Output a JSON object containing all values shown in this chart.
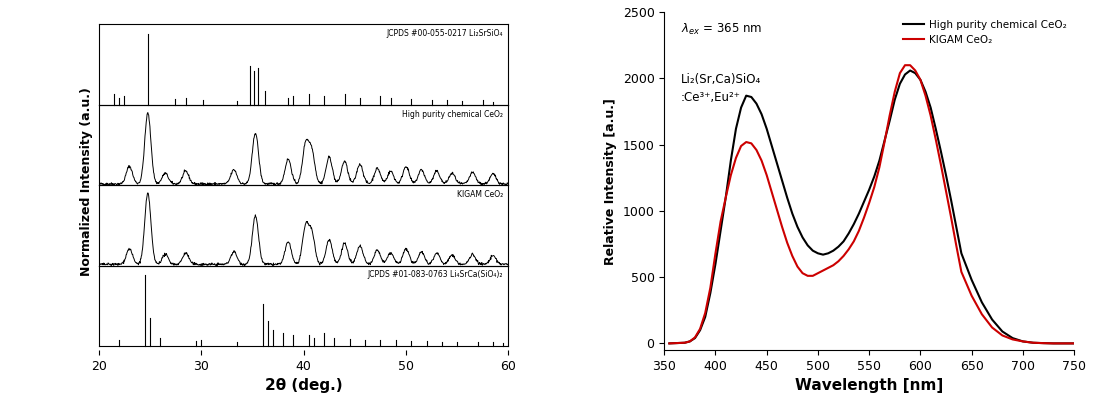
{
  "xrd": {
    "xlabel": "2θ (deg.)",
    "ylabel": "Normalized Intensity (a.u.)",
    "xlim": [
      20,
      60
    ],
    "labels": [
      "JCPDS #00-055-0217 Li₂SrSiO₄",
      "High purity chemical CeO₂",
      "KIGAM CeO₂",
      "JCPDS #01-083-0763 Li₄SrCa(SiO₄)₂"
    ],
    "panel1_peaks": [
      21.5,
      22.0,
      22.5,
      24.8,
      27.5,
      28.5,
      30.2,
      33.5,
      34.8,
      35.2,
      35.6,
      36.2,
      38.5,
      39.0,
      40.5,
      42.0,
      44.0,
      45.5,
      47.5,
      48.5,
      50.5,
      52.5,
      54.0,
      55.5,
      57.5,
      58.5
    ],
    "panel1_heights": [
      0.15,
      0.1,
      0.12,
      1.0,
      0.08,
      0.1,
      0.06,
      0.05,
      0.55,
      0.48,
      0.52,
      0.2,
      0.1,
      0.12,
      0.15,
      0.12,
      0.15,
      0.1,
      0.12,
      0.1,
      0.08,
      0.07,
      0.06,
      0.05,
      0.06,
      0.04
    ],
    "panel2_peaks": [
      23.0,
      24.8,
      26.5,
      28.5,
      33.2,
      35.3,
      38.5,
      40.2,
      40.8,
      42.5,
      44.0,
      45.5,
      47.2,
      48.5,
      50.0,
      51.5,
      53.0,
      54.5,
      56.5,
      58.5
    ],
    "panel2_heights": [
      0.25,
      1.0,
      0.15,
      0.18,
      0.2,
      0.72,
      0.35,
      0.55,
      0.45,
      0.38,
      0.32,
      0.28,
      0.22,
      0.18,
      0.25,
      0.2,
      0.18,
      0.15,
      0.16,
      0.14
    ],
    "panel3_peaks": [
      23.0,
      24.8,
      26.5,
      28.5,
      33.2,
      35.3,
      38.5,
      40.2,
      40.8,
      42.5,
      44.0,
      45.5,
      47.2,
      48.5,
      50.0,
      51.5,
      53.0,
      54.5,
      56.5,
      58.5
    ],
    "panel3_heights": [
      0.22,
      1.0,
      0.14,
      0.16,
      0.18,
      0.68,
      0.32,
      0.52,
      0.42,
      0.35,
      0.3,
      0.26,
      0.2,
      0.16,
      0.22,
      0.18,
      0.16,
      0.13,
      0.14,
      0.12
    ],
    "panel4_peaks": [
      22.0,
      24.5,
      25.0,
      26.0,
      29.5,
      30.0,
      33.5,
      36.0,
      36.5,
      37.0,
      38.0,
      39.0,
      40.5,
      41.0,
      42.0,
      43.0,
      44.5,
      46.0,
      47.5,
      49.0,
      50.5,
      52.0,
      53.5,
      55.0,
      57.0,
      58.5,
      59.5
    ],
    "panel4_heights": [
      0.08,
      1.0,
      0.4,
      0.12,
      0.07,
      0.08,
      0.06,
      0.6,
      0.35,
      0.22,
      0.18,
      0.15,
      0.15,
      0.12,
      0.18,
      0.12,
      0.1,
      0.08,
      0.09,
      0.08,
      0.07,
      0.07,
      0.06,
      0.06,
      0.05,
      0.05,
      0.04
    ]
  },
  "emission": {
    "xlabel": "Wavelength [nm]",
    "ylabel": "Relative Intensity [a.u.]",
    "xlim": [
      350,
      750
    ],
    "ylim": [
      -50,
      2500
    ],
    "yticks": [
      0,
      500,
      1000,
      1500,
      2000,
      2500
    ],
    "legend_labels": [
      "High purity chemical CeO₂",
      "KIGAM CeO₂"
    ],
    "black_curve_x": [
      355,
      370,
      375,
      380,
      385,
      390,
      395,
      400,
      405,
      410,
      415,
      420,
      425,
      430,
      435,
      440,
      445,
      450,
      455,
      460,
      465,
      470,
      475,
      480,
      485,
      490,
      495,
      500,
      505,
      510,
      515,
      520,
      525,
      530,
      535,
      540,
      545,
      550,
      555,
      560,
      565,
      570,
      575,
      580,
      585,
      590,
      595,
      600,
      605,
      610,
      615,
      620,
      625,
      630,
      635,
      640,
      650,
      660,
      670,
      680,
      690,
      700,
      710,
      720,
      730,
      740,
      750
    ],
    "black_curve_y": [
      0,
      5,
      15,
      40,
      100,
      200,
      380,
      600,
      850,
      1100,
      1380,
      1620,
      1780,
      1870,
      1860,
      1810,
      1730,
      1620,
      1490,
      1360,
      1230,
      1100,
      980,
      880,
      800,
      740,
      700,
      680,
      670,
      680,
      700,
      730,
      770,
      830,
      900,
      980,
      1070,
      1160,
      1260,
      1380,
      1530,
      1680,
      1840,
      1960,
      2030,
      2060,
      2040,
      1990,
      1900,
      1780,
      1620,
      1450,
      1270,
      1080,
      880,
      680,
      480,
      310,
      180,
      90,
      40,
      15,
      5,
      2,
      0,
      0,
      0
    ],
    "red_curve_x": [
      355,
      370,
      375,
      380,
      385,
      390,
      395,
      400,
      405,
      410,
      415,
      420,
      425,
      430,
      435,
      440,
      445,
      450,
      455,
      460,
      465,
      470,
      475,
      480,
      485,
      490,
      495,
      500,
      505,
      510,
      515,
      520,
      525,
      530,
      535,
      540,
      545,
      550,
      555,
      560,
      565,
      570,
      575,
      580,
      585,
      590,
      595,
      600,
      605,
      610,
      615,
      620,
      625,
      630,
      635,
      640,
      650,
      660,
      670,
      680,
      690,
      700,
      710,
      720,
      730,
      740,
      750
    ],
    "red_curve_y": [
      0,
      5,
      15,
      45,
      110,
      230,
      420,
      680,
      920,
      1100,
      1270,
      1400,
      1490,
      1520,
      1510,
      1460,
      1380,
      1270,
      1140,
      1010,
      880,
      760,
      660,
      580,
      530,
      510,
      510,
      530,
      550,
      570,
      590,
      620,
      660,
      710,
      770,
      850,
      950,
      1060,
      1180,
      1330,
      1520,
      1720,
      1900,
      2040,
      2100,
      2100,
      2060,
      1990,
      1870,
      1720,
      1540,
      1350,
      1150,
      950,
      740,
      540,
      360,
      220,
      120,
      60,
      30,
      15,
      5,
      2,
      0,
      0,
      0
    ]
  }
}
